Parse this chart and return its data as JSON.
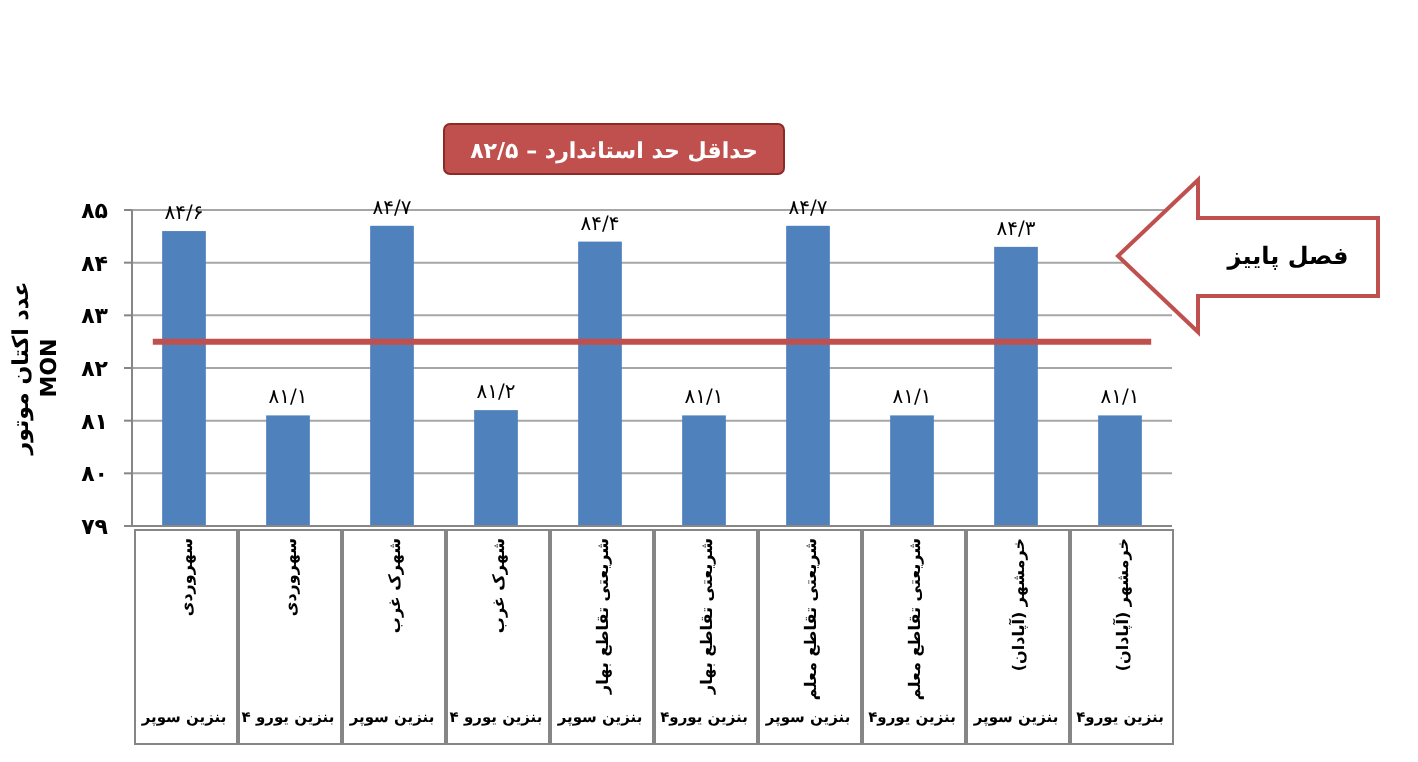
{
  "chart_data": {
    "type": "bar",
    "title": "حداقل حد استاندارد – ۸۲/۵",
    "ylabel": "عدد اکتان موتور\nMON",
    "categories": [
      "سهروردی\nبنزین سوپر",
      "سهروردی\nبنزین یورو ۴",
      "شهرک غرب\nبنزین سوپر",
      "شهرک غرب\nبنزین یورو ۴",
      "شریعتی تقاطع بهار\nبنزین سوپر",
      "شریعتی تقاطع بهار\nبنزین یورو۴",
      "شریعتی تقاطع معلم\nبنزین سوپر",
      "شریعتی تقاطع معلم\nبنزین یورو۴",
      "خرمشهر (آپادان)\nبنزین سوپر",
      "خرمشهر (آپادان)\nبنزین یورو۴"
    ],
    "series": [
      {
        "color": "#4f81bd",
        "values": [
          84.6,
          81.1,
          84.7,
          81.2,
          84.4,
          81.1,
          84.7,
          81.1,
          84.3,
          81.1
        ],
        "value_labels": [
          "۸۴/۶",
          "۸۱/۱",
          "۸۴/۷",
          "۸۱/۲",
          "۸۴/۴",
          "۸۱/۱",
          "۸۴/۷",
          "۸۱/۱",
          "۸۴/۳",
          "۸۱/۱"
        ]
      }
    ],
    "ylim": [
      79,
      85
    ],
    "yticks": [
      {
        "value": 79,
        "label": "۷۹"
      },
      {
        "value": 80,
        "label": "۸۰"
      },
      {
        "value": 81,
        "label": "۸۱"
      },
      {
        "value": 82,
        "label": "۸۲"
      },
      {
        "value": 83,
        "label": "۸۳"
      },
      {
        "value": 84,
        "label": "۸۴"
      },
      {
        "value": 85,
        "label": "۸۵"
      }
    ],
    "grid": "y",
    "ref_lines": [
      {
        "axis": "y",
        "value": 82.5,
        "color": "#c0504d"
      }
    ],
    "annotations": [
      "فصل پاییز"
    ]
  }
}
